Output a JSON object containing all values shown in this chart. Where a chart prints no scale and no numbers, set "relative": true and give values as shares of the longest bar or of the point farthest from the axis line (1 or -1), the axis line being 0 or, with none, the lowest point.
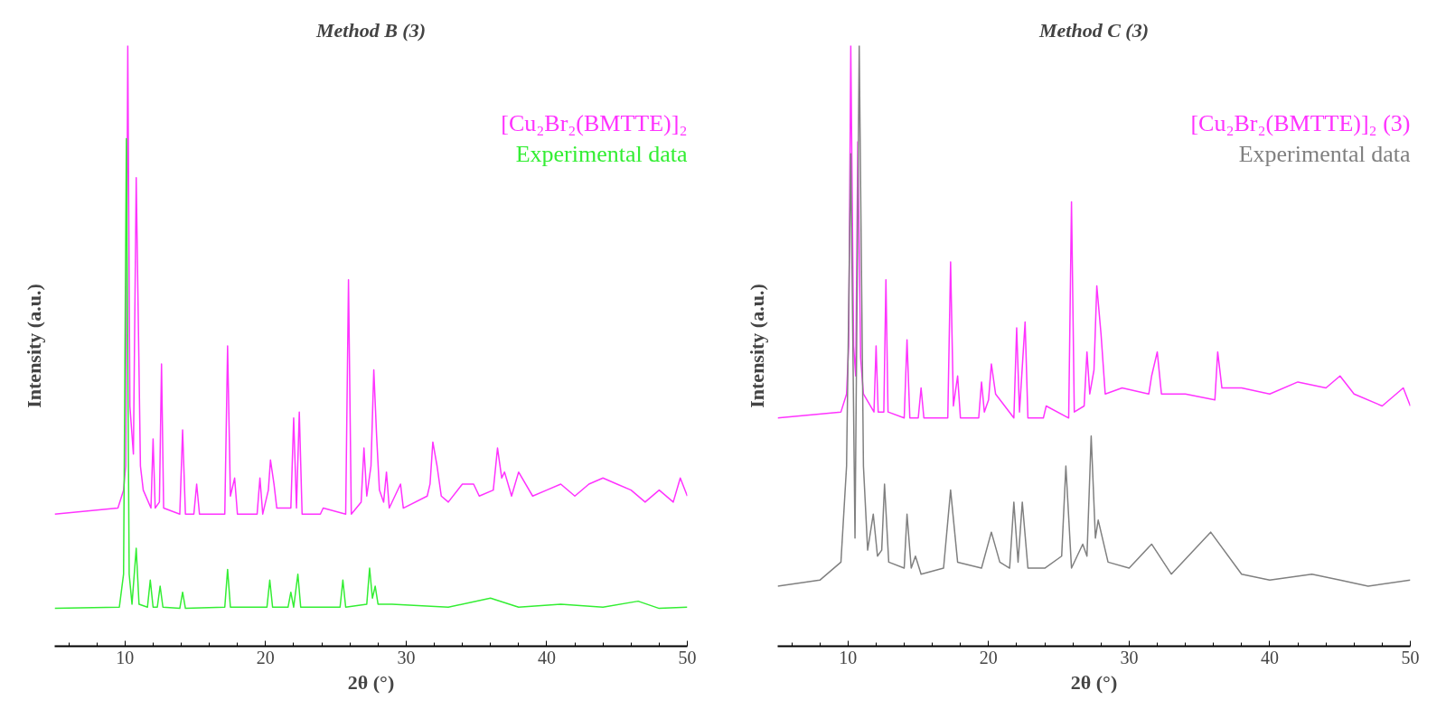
{
  "chart_data": [
    {
      "type": "line",
      "title": "Method B (3)",
      "xlabel": "2θ (°)",
      "ylabel": "Intensity (a.u.)",
      "relative": true,
      "grid": false,
      "legend": "top right",
      "marker": "none",
      "line_style": "solid",
      "xlim": [
        5,
        50
      ],
      "xticks": [
        {
          "value": 6,
          "label": null
        },
        {
          "value": 8,
          "label": null
        },
        10,
        {
          "value": 12,
          "label": null
        },
        {
          "value": 14,
          "label": null
        },
        {
          "value": 16,
          "label": null
        },
        {
          "value": 18,
          "label": null
        },
        20,
        {
          "value": 22,
          "label": null
        },
        {
          "value": 24,
          "label": null
        },
        {
          "value": 26,
          "label": null
        },
        {
          "value": 28,
          "label": null
        },
        30,
        {
          "value": 32,
          "label": null
        },
        {
          "value": 34,
          "label": null
        },
        {
          "value": 36,
          "label": null
        },
        {
          "value": 38,
          "label": null
        },
        40,
        {
          "value": 42,
          "label": null
        },
        {
          "value": 44,
          "label": null
        },
        {
          "value": 46,
          "label": null
        },
        {
          "value": 48,
          "label": null
        },
        50
      ],
      "series": [
        {
          "name": "[Cu₂Br₂(BMTTE)]₂",
          "color": "#ff33ff",
          "x": [
            5,
            9.5,
            9.9,
            10.05,
            10.2,
            10.35,
            10.6,
            10.8,
            10.95,
            11.1,
            11.3,
            11.85,
            12.0,
            12.15,
            12.45,
            12.6,
            12.75,
            13.9,
            14.1,
            14.3,
            14.9,
            15.1,
            15.3,
            17.1,
            17.3,
            17.5,
            17.8,
            18.0,
            19.4,
            19.6,
            19.8,
            20.2,
            20.35,
            20.6,
            20.8,
            21.8,
            22.0,
            22.2,
            22.4,
            22.6,
            23.9,
            24.1,
            25.7,
            25.9,
            26.1,
            26.8,
            27.0,
            27.2,
            27.5,
            27.7,
            27.9,
            28.1,
            28.4,
            28.6,
            28.8,
            29.6,
            29.8,
            31.5,
            31.7,
            31.9,
            32.2,
            32.5,
            33.0,
            34.0,
            34.8,
            35.2,
            36.2,
            36.5,
            36.8,
            37.0,
            37.5,
            38.0,
            39.0,
            40.0,
            41.0,
            42.0,
            43.0,
            44.0,
            45.0,
            46.0,
            47.0,
            48.0,
            49.0,
            49.5,
            50
          ],
          "values": [
            0.22,
            0.23,
            0.26,
            0.3,
            1.0,
            0.4,
            0.32,
            0.78,
            0.54,
            0.3,
            0.26,
            0.23,
            0.345,
            0.23,
            0.24,
            0.47,
            0.23,
            0.22,
            0.36,
            0.22,
            0.22,
            0.27,
            0.22,
            0.22,
            0.5,
            0.25,
            0.28,
            0.22,
            0.22,
            0.28,
            0.22,
            0.26,
            0.31,
            0.27,
            0.23,
            0.23,
            0.38,
            0.23,
            0.39,
            0.22,
            0.22,
            0.23,
            0.22,
            0.61,
            0.22,
            0.24,
            0.33,
            0.25,
            0.3,
            0.46,
            0.35,
            0.26,
            0.24,
            0.29,
            0.23,
            0.27,
            0.23,
            0.25,
            0.27,
            0.34,
            0.3,
            0.25,
            0.24,
            0.27,
            0.27,
            0.25,
            0.26,
            0.33,
            0.28,
            0.29,
            0.25,
            0.29,
            0.25,
            0.26,
            0.27,
            0.25,
            0.27,
            0.28,
            0.27,
            0.26,
            0.24,
            0.26,
            0.24,
            0.28,
            0.25
          ]
        },
        {
          "name": "Experimental data",
          "color": "#33ee33",
          "x": [
            5,
            9.6,
            9.9,
            10.1,
            10.3,
            10.5,
            10.8,
            11.0,
            11.6,
            11.8,
            12.0,
            12.3,
            12.5,
            12.7,
            13.9,
            14.1,
            14.3,
            17.1,
            17.3,
            17.5,
            20.1,
            20.3,
            20.5,
            21.6,
            21.8,
            22.0,
            22.3,
            22.5,
            25.3,
            25.5,
            25.7,
            27.2,
            27.4,
            27.6,
            27.8,
            28.0,
            29.0,
            33.0,
            36.0,
            38.0,
            41.0,
            44.0,
            46.5,
            48.0,
            50
          ],
          "values": [
            0.063,
            0.065,
            0.12,
            0.845,
            0.12,
            0.07,
            0.163,
            0.07,
            0.065,
            0.11,
            0.065,
            0.065,
            0.1,
            0.065,
            0.063,
            0.09,
            0.063,
            0.065,
            0.128,
            0.065,
            0.065,
            0.11,
            0.065,
            0.065,
            0.09,
            0.065,
            0.12,
            0.065,
            0.065,
            0.11,
            0.065,
            0.07,
            0.13,
            0.08,
            0.1,
            0.07,
            0.07,
            0.065,
            0.08,
            0.065,
            0.07,
            0.065,
            0.075,
            0.063,
            0.065
          ]
        }
      ]
    },
    {
      "type": "line",
      "title": "Method C (3)",
      "xlabel": "2θ (°)",
      "ylabel": "Intensity (a.u.)",
      "relative": true,
      "grid": false,
      "legend": "top right",
      "marker": "none",
      "line_style": "solid",
      "xlim": [
        5,
        50
      ],
      "xticks": [
        {
          "value": 6,
          "label": null
        },
        {
          "value": 8,
          "label": null
        },
        10,
        {
          "value": 12,
          "label": null
        },
        {
          "value": 14,
          "label": null
        },
        {
          "value": 16,
          "label": null
        },
        {
          "value": 18,
          "label": null
        },
        20,
        {
          "value": 22,
          "label": null
        },
        {
          "value": 24,
          "label": null
        },
        {
          "value": 26,
          "label": null
        },
        {
          "value": 28,
          "label": null
        },
        30,
        {
          "value": 32,
          "label": null
        },
        {
          "value": 34,
          "label": null
        },
        {
          "value": 36,
          "label": null
        },
        {
          "value": 38,
          "label": null
        },
        40,
        {
          "value": 42,
          "label": null
        },
        {
          "value": 44,
          "label": null
        },
        {
          "value": 46,
          "label": null
        },
        {
          "value": 48,
          "label": null
        },
        50
      ],
      "series": [
        {
          "name": "[Cu₂Br₂(BMTTE)]₂ (3)",
          "color": "#ff33ff",
          "x": [
            5,
            9.5,
            9.9,
            10.05,
            10.2,
            10.4,
            10.55,
            10.7,
            10.9,
            11.1,
            11.85,
            12.0,
            12.15,
            12.55,
            12.7,
            12.85,
            14.0,
            14.2,
            14.4,
            15.0,
            15.2,
            15.4,
            17.1,
            17.3,
            17.5,
            17.8,
            18.0,
            19.3,
            19.5,
            19.7,
            20.0,
            20.2,
            20.5,
            21.8,
            22.0,
            22.2,
            22.6,
            22.8,
            23.9,
            24.1,
            25.7,
            25.9,
            26.1,
            26.8,
            27.0,
            27.2,
            27.5,
            27.7,
            28.0,
            28.3,
            29.5,
            31.4,
            31.6,
            32.0,
            32.3,
            34.0,
            36.1,
            36.3,
            36.6,
            38.0,
            40.0,
            42.0,
            44.0,
            45.0,
            46.0,
            48.0,
            49.5,
            50
          ],
          "values": [
            0.38,
            0.39,
            0.42,
            0.5,
            1.0,
            0.5,
            0.45,
            0.84,
            0.48,
            0.42,
            0.39,
            0.5,
            0.39,
            0.39,
            0.61,
            0.39,
            0.38,
            0.51,
            0.38,
            0.38,
            0.43,
            0.38,
            0.38,
            0.64,
            0.4,
            0.45,
            0.38,
            0.38,
            0.44,
            0.39,
            0.41,
            0.47,
            0.42,
            0.38,
            0.53,
            0.39,
            0.54,
            0.38,
            0.38,
            0.4,
            0.38,
            0.74,
            0.39,
            0.4,
            0.49,
            0.42,
            0.46,
            0.6,
            0.52,
            0.42,
            0.43,
            0.42,
            0.45,
            0.49,
            0.42,
            0.42,
            0.41,
            0.49,
            0.43,
            0.43,
            0.42,
            0.44,
            0.43,
            0.45,
            0.42,
            0.4,
            0.43,
            0.4
          ]
        },
        {
          "name": "Experimental data",
          "color": "#808080",
          "x": [
            5,
            8,
            9.5,
            9.9,
            10.2,
            10.5,
            10.8,
            11.1,
            11.4,
            11.8,
            12.1,
            12.4,
            12.6,
            12.9,
            14.0,
            14.2,
            14.5,
            14.8,
            15.2,
            16.8,
            17.3,
            17.8,
            19.5,
            20.2,
            20.8,
            21.5,
            21.8,
            22.1,
            22.4,
            22.8,
            24,
            25.2,
            25.5,
            25.9,
            26.7,
            27.0,
            27.3,
            27.6,
            27.8,
            28.5,
            30,
            31.6,
            33,
            35.8,
            38,
            40,
            43,
            45,
            47,
            50
          ],
          "values": [
            0.1,
            0.11,
            0.14,
            0.3,
            0.82,
            0.18,
            1.0,
            0.3,
            0.16,
            0.22,
            0.15,
            0.16,
            0.27,
            0.14,
            0.13,
            0.22,
            0.13,
            0.15,
            0.12,
            0.13,
            0.26,
            0.14,
            0.13,
            0.19,
            0.14,
            0.13,
            0.24,
            0.14,
            0.24,
            0.13,
            0.13,
            0.15,
            0.3,
            0.13,
            0.17,
            0.15,
            0.35,
            0.18,
            0.21,
            0.14,
            0.13,
            0.17,
            0.12,
            0.19,
            0.12,
            0.11,
            0.12,
            0.11,
            0.1,
            0.11
          ]
        }
      ]
    }
  ]
}
